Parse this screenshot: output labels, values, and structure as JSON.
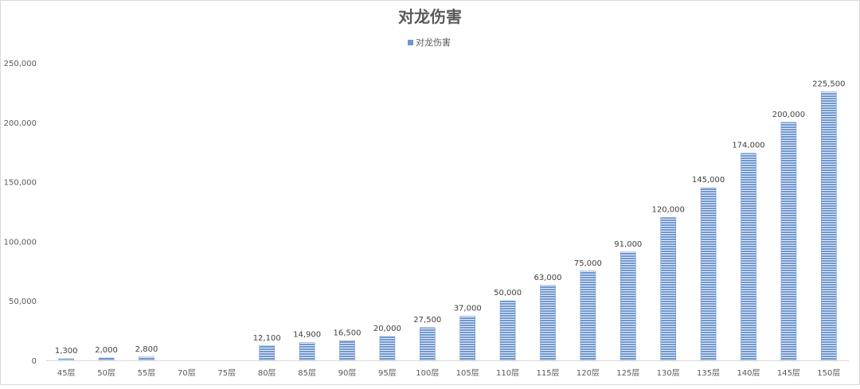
{
  "chart_data": {
    "type": "bar",
    "title": "对龙伤害",
    "legend": {
      "position": "top",
      "label": "对龙伤害"
    },
    "categories": [
      "45层",
      "50层",
      "55层",
      "70层",
      "75层",
      "80层",
      "85层",
      "90层",
      "95层",
      "100层",
      "105层",
      "110层",
      "115层",
      "120层",
      "125层",
      "130层",
      "135层",
      "140层",
      "145层",
      "150层"
    ],
    "series": [
      {
        "name": "对龙伤害",
        "values": [
          1300,
          2000,
          2800,
          0,
          0,
          12100,
          14900,
          16500,
          20000,
          27500,
          37000,
          50000,
          63000,
          75000,
          91000,
          120000,
          145000,
          174000,
          200000,
          225500
        ]
      }
    ],
    "data_labels": [
      "1,300",
      "2,000",
      "2,800",
      "",
      "",
      "12,100",
      "14,900",
      "16,500",
      "20,000",
      "27,500",
      "37,000",
      "50,000",
      "63,000",
      "75,000",
      "91,000",
      "120,000",
      "145,000",
      "174,000",
      "200,000",
      "225,500"
    ],
    "yticks": [
      "0",
      "50,000",
      "100,000",
      "150,000",
      "200,000",
      "250,000"
    ],
    "ylim": [
      0,
      250000
    ],
    "grid": false,
    "colors": {
      "bar": "#6f97cf",
      "bar_stripe": "#ffffff",
      "axis": "#d9d9d9",
      "text": "#595959"
    }
  }
}
